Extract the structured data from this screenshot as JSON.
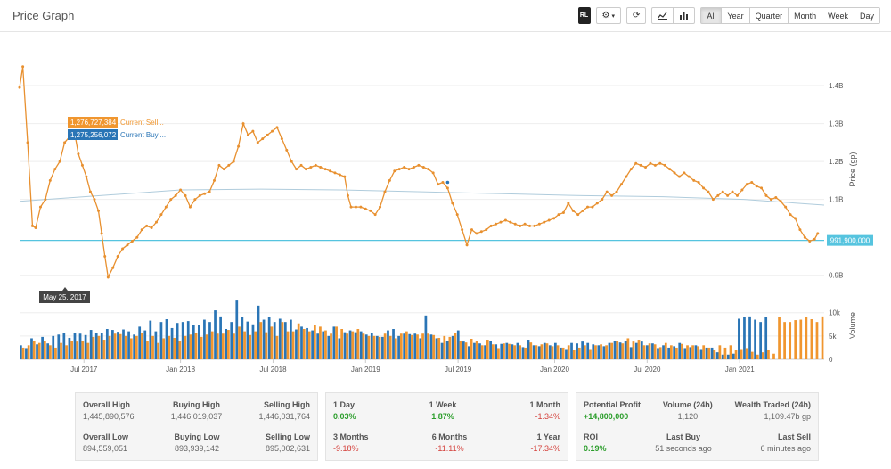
{
  "page": {
    "title": "Price Graph"
  },
  "toolbar": {
    "logo_label": "RL",
    "ranges": [
      "All",
      "Year",
      "Quarter",
      "Month",
      "Week",
      "Day"
    ],
    "active_range": "All"
  },
  "colors": {
    "sell": "#f0962f",
    "buy": "#2a75b6",
    "price_line": "#e8902f",
    "current_line": "#56c4df",
    "trend_line": "#b0ccdc",
    "volume_sell": "#f0962f",
    "volume_buy": "#2a75b6"
  },
  "chart_data": {
    "type": "line",
    "x_ticks": [
      "Jul 2017",
      "Jan 2018",
      "Jul 2018",
      "Jan 2019",
      "Jul 2019",
      "Jan 2020",
      "Jul 2020",
      "Jan 2021"
    ],
    "price_axis": {
      "label": "Price (gp)",
      "ticks": [
        "0.9B",
        "1.1B",
        "1.2B",
        "1.3B",
        "1.4B"
      ],
      "tick_values": [
        900000000,
        1100000000,
        1200000000,
        1300000000,
        1400000000
      ],
      "ylim": [
        850000000,
        1480000000
      ]
    },
    "volume_axis": {
      "label": "Volume",
      "ticks": [
        "0",
        "5k",
        "10k"
      ],
      "tick_values": [
        0,
        5000,
        10000
      ],
      "ylim": [
        0,
        13000
      ]
    },
    "x_range": [
      0,
      100
    ],
    "price_series": {
      "name": "Price",
      "points": [
        [
          0,
          1395
        ],
        [
          0.4,
          1450
        ],
        [
          1,
          1250
        ],
        [
          1.6,
          1030
        ],
        [
          2,
          1025
        ],
        [
          2.6,
          1080
        ],
        [
          3.2,
          1100
        ],
        [
          3.8,
          1150
        ],
        [
          4.4,
          1180
        ],
        [
          5,
          1200
        ],
        [
          5.6,
          1250
        ],
        [
          6.2,
          1265
        ],
        [
          6.8,
          1280
        ],
        [
          7.3,
          1220
        ],
        [
          7.8,
          1190
        ],
        [
          8.3,
          1160
        ],
        [
          8.8,
          1120
        ],
        [
          9.3,
          1100
        ],
        [
          9.8,
          1070
        ],
        [
          10.2,
          1010
        ],
        [
          10.6,
          950
        ],
        [
          11,
          895
        ],
        [
          11.6,
          920
        ],
        [
          12.2,
          950
        ],
        [
          12.8,
          970
        ],
        [
          13.4,
          980
        ],
        [
          14,
          990
        ],
        [
          14.6,
          1000
        ],
        [
          15.2,
          1020
        ],
        [
          15.8,
          1030
        ],
        [
          16.4,
          1025
        ],
        [
          17,
          1040
        ],
        [
          17.6,
          1060
        ],
        [
          18.2,
          1080
        ],
        [
          18.8,
          1100
        ],
        [
          19.4,
          1110
        ],
        [
          20,
          1125
        ],
        [
          20.6,
          1110
        ],
        [
          21.2,
          1080
        ],
        [
          21.8,
          1100
        ],
        [
          22.4,
          1110
        ],
        [
          23,
          1115
        ],
        [
          23.6,
          1120
        ],
        [
          24.2,
          1150
        ],
        [
          24.8,
          1190
        ],
        [
          25.4,
          1180
        ],
        [
          26,
          1190
        ],
        [
          26.6,
          1200
        ],
        [
          27.2,
          1240
        ],
        [
          27.8,
          1300
        ],
        [
          28.4,
          1270
        ],
        [
          29,
          1280
        ],
        [
          29.6,
          1250
        ],
        [
          30.2,
          1260
        ],
        [
          30.8,
          1270
        ],
        [
          31.4,
          1280
        ],
        [
          32,
          1290
        ],
        [
          32.6,
          1260
        ],
        [
          33.2,
          1230
        ],
        [
          33.8,
          1200
        ],
        [
          34.4,
          1180
        ],
        [
          35,
          1190
        ],
        [
          35.6,
          1180
        ],
        [
          36.2,
          1185
        ],
        [
          36.8,
          1190
        ],
        [
          37.4,
          1185
        ],
        [
          38,
          1180
        ],
        [
          38.6,
          1175
        ],
        [
          39.2,
          1170
        ],
        [
          39.8,
          1165
        ],
        [
          40.4,
          1160
        ],
        [
          40.8,
          1110
        ],
        [
          41.2,
          1080
        ],
        [
          41.8,
          1080
        ],
        [
          42.4,
          1080
        ],
        [
          43,
          1075
        ],
        [
          43.6,
          1070
        ],
        [
          44.2,
          1060
        ],
        [
          44.8,
          1080
        ],
        [
          45.4,
          1120
        ],
        [
          46,
          1150
        ],
        [
          46.6,
          1175
        ],
        [
          47.2,
          1180
        ],
        [
          47.8,
          1185
        ],
        [
          48.4,
          1180
        ],
        [
          49,
          1185
        ],
        [
          49.6,
          1190
        ],
        [
          50.2,
          1185
        ],
        [
          50.8,
          1180
        ],
        [
          51.4,
          1170
        ],
        [
          52,
          1140
        ],
        [
          52.6,
          1145
        ],
        [
          53.2,
          1130
        ],
        [
          53.8,
          1090
        ],
        [
          54.4,
          1060
        ],
        [
          55,
          1020
        ],
        [
          55.6,
          980
        ],
        [
          56.2,
          1020
        ],
        [
          56.8,
          1010
        ],
        [
          57.4,
          1015
        ],
        [
          58,
          1020
        ],
        [
          58.6,
          1030
        ],
        [
          59.2,
          1035
        ],
        [
          59.8,
          1040
        ],
        [
          60.4,
          1045
        ],
        [
          61,
          1040
        ],
        [
          61.6,
          1035
        ],
        [
          62.2,
          1030
        ],
        [
          62.8,
          1035
        ],
        [
          63.4,
          1030
        ],
        [
          64,
          1030
        ],
        [
          64.6,
          1035
        ],
        [
          65.2,
          1040
        ],
        [
          65.8,
          1045
        ],
        [
          66.4,
          1050
        ],
        [
          67,
          1060
        ],
        [
          67.6,
          1065
        ],
        [
          68.2,
          1090
        ],
        [
          68.8,
          1070
        ],
        [
          69.4,
          1060
        ],
        [
          70,
          1070
        ],
        [
          70.6,
          1080
        ],
        [
          71.2,
          1080
        ],
        [
          71.8,
          1090
        ],
        [
          72.4,
          1100
        ],
        [
          73,
          1120
        ],
        [
          73.6,
          1110
        ],
        [
          74.2,
          1120
        ],
        [
          74.8,
          1140
        ],
        [
          75.4,
          1160
        ],
        [
          76,
          1180
        ],
        [
          76.6,
          1195
        ],
        [
          77.2,
          1190
        ],
        [
          77.8,
          1185
        ],
        [
          78.4,
          1195
        ],
        [
          79,
          1190
        ],
        [
          79.6,
          1195
        ],
        [
          80.2,
          1190
        ],
        [
          80.8,
          1180
        ],
        [
          81.4,
          1170
        ],
        [
          82,
          1160
        ],
        [
          82.6,
          1170
        ],
        [
          83.2,
          1160
        ],
        [
          83.8,
          1150
        ],
        [
          84.4,
          1145
        ],
        [
          85,
          1130
        ],
        [
          85.6,
          1120
        ],
        [
          86.2,
          1100
        ],
        [
          86.8,
          1110
        ],
        [
          87.4,
          1120
        ],
        [
          88,
          1110
        ],
        [
          88.6,
          1120
        ],
        [
          89.2,
          1110
        ],
        [
          89.8,
          1125
        ],
        [
          90.4,
          1140
        ],
        [
          91,
          1145
        ],
        [
          91.6,
          1135
        ],
        [
          92.2,
          1130
        ],
        [
          92.8,
          1110
        ],
        [
          93.4,
          1100
        ],
        [
          94,
          1105
        ],
        [
          94.6,
          1095
        ],
        [
          95.2,
          1080
        ],
        [
          95.8,
          1060
        ],
        [
          96.4,
          1050
        ],
        [
          97,
          1020
        ],
        [
          97.6,
          1000
        ],
        [
          98.2,
          990
        ],
        [
          98.8,
          995
        ],
        [
          99.2,
          1010
        ]
      ]
    },
    "trend_points": [
      [
        0,
        1095
      ],
      [
        10,
        1110
      ],
      [
        20,
        1125
      ],
      [
        30,
        1127
      ],
      [
        40,
        1125
      ],
      [
        50,
        1120
      ],
      [
        60,
        1115
      ],
      [
        70,
        1110
      ],
      [
        80,
        1107
      ],
      [
        90,
        1100
      ],
      [
        100,
        1085
      ]
    ],
    "buy_markers": [
      [
        53.2,
        1145
      ]
    ],
    "current_value": 991900000,
    "current_label": "991,900,000",
    "tooltip": {
      "date": "May 25, 2017",
      "sell_value": "1,276,727,384",
      "sell_label": "Current Sell...",
      "buy_value": "1,275,256,072",
      "buy_label": "Current Buyl..."
    },
    "volume_series": {
      "sell": [
        2.5,
        3,
        4,
        3.5,
        4,
        3,
        2.5,
        3.5,
        3,
        4,
        3.8,
        4,
        3.5,
        4.8,
        5,
        4.2,
        5,
        5.5,
        5.4,
        5,
        4.5,
        5,
        5.6,
        4,
        5,
        3.5,
        4.5,
        5,
        4.6,
        4,
        5,
        5.3,
        5.7,
        4.8,
        5.3,
        6,
        5.5,
        5.5,
        6.3,
        5.5,
        7,
        6,
        5.2,
        6,
        8,
        5.8,
        7,
        5,
        8,
        6,
        6,
        7.7,
        6.5,
        6,
        7.4,
        7,
        6.2,
        5.5,
        7,
        6.5,
        5.5,
        6,
        6.5,
        5.5,
        5,
        5,
        4.8,
        5.5,
        5,
        4.5,
        5.5,
        6,
        5.2,
        5.3,
        5.5,
        5.5,
        5.2,
        4.6,
        5,
        4.8,
        5.6,
        4,
        3.6,
        4.4,
        4,
        3,
        4.2,
        3.2,
        2.4,
        3.4,
        3.3,
        3,
        3,
        2.5,
        3.6,
        3,
        3.2,
        3.4,
        2.8,
        3,
        2.5,
        3,
        2,
        2.5,
        3,
        2.2,
        3,
        3.2,
        3,
        3.5,
        4,
        3.4,
        4.5,
        3.8,
        4.2,
        3,
        3.4,
        3.2,
        2.6,
        3.5,
        3,
        2.5,
        3.3,
        3,
        3,
        2.8,
        3,
        2.5,
        2,
        3,
        2.5,
        3,
        2,
        2.2,
        2.4,
        1.6,
        1,
        1.5,
        2,
        1.2,
        9,
        8,
        8,
        8.4,
        8.5,
        9,
        8.6,
        8,
        9.2
      ],
      "buy": [
        3,
        2.4,
        4.5,
        3.2,
        4.8,
        3.4,
        5,
        5.3,
        5.6,
        4.6,
        5.6,
        5.5,
        5.2,
        6.3,
        5.7,
        5.6,
        6.5,
        6.3,
        5.9,
        6.4,
        6,
        5.3,
        7,
        6.2,
        8.3,
        6,
        8,
        8.6,
        6.7,
        7.8,
        8,
        8.2,
        7.3,
        7.4,
        8.5,
        8,
        10.5,
        9.2,
        6.5,
        8,
        12.6,
        9,
        8.1,
        7.5,
        11.5,
        8.5,
        9,
        8,
        8.7,
        8,
        8.5,
        6.4,
        7,
        6.7,
        6.2,
        5.5,
        6,
        5,
        7,
        4.5,
        5.8,
        6.2,
        5.8,
        6,
        5.3,
        5.6,
        5,
        4.8,
        6.2,
        6.5,
        5,
        5.5,
        5.4,
        5.5,
        4.5,
        9.4,
        5.3,
        4.5,
        3.5,
        4,
        5,
        6.2,
        3.8,
        2.8,
        3.5,
        3.4,
        3,
        4,
        3.2,
        3.3,
        3.5,
        3.2,
        3.5,
        2.6,
        4.2,
        3,
        2.8,
        3.5,
        3,
        3.5,
        2.5,
        2.2,
        3.5,
        3.4,
        3.8,
        3.5,
        3.2,
        3,
        2.8,
        3.5,
        4,
        3.6,
        4,
        2.6,
        3.5,
        3.8,
        3,
        3.4,
        2.4,
        3,
        2.5,
        2.8,
        3.5,
        2.4,
        2.6,
        3,
        2.2,
        2.5,
        2.5,
        1.5,
        1,
        1,
        1.2,
        8.7,
        9,
        9.2,
        8.5,
        8,
        9
      ]
    }
  },
  "stats": {
    "panel1": {
      "row1": [
        {
          "label": "Overall High",
          "value": "1,445,890,576"
        },
        {
          "label": "Buying High",
          "value": "1,446,019,037"
        },
        {
          "label": "Selling High",
          "value": "1,446,031,764"
        }
      ],
      "row2": [
        {
          "label": "Overall Low",
          "value": "894,559,051"
        },
        {
          "label": "Buying Low",
          "value": "893,939,142"
        },
        {
          "label": "Selling Low",
          "value": "895,002,631"
        }
      ]
    },
    "panel2": {
      "row1": [
        {
          "label": "1 Day",
          "value": "0.03%"
        },
        {
          "label": "1 Week",
          "value": "1.87%"
        },
        {
          "label": "1 Month",
          "value": "-1.34%"
        }
      ],
      "row2": [
        {
          "label": "3 Months",
          "value": "-9.18%"
        },
        {
          "label": "6 Months",
          "value": "-11.11%"
        },
        {
          "label": "1 Year",
          "value": "-17.34%"
        }
      ]
    },
    "panel3": {
      "row1": [
        {
          "label": "Potential Profit",
          "value": "+14,800,000"
        },
        {
          "label": "Volume (24h)",
          "value": "1,120"
        },
        {
          "label": "Wealth Traded (24h)",
          "value": "1,109.47b gp"
        }
      ],
      "row2": [
        {
          "label": "ROI",
          "value": "0.19%"
        },
        {
          "label": "Last Buy",
          "value": "51 seconds ago"
        },
        {
          "label": "Last Sell",
          "value": "6 minutes ago"
        }
      ]
    }
  }
}
